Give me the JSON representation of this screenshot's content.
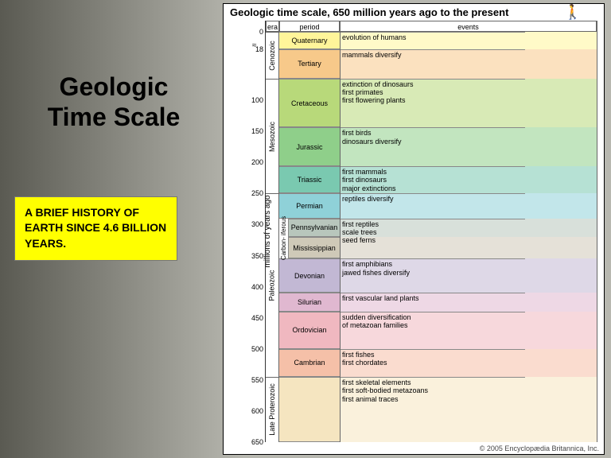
{
  "left": {
    "title_line1": "Geologic",
    "title_line2": "Time Scale",
    "subtitle": "A BRIEF HISTORY OF EARTH SINCE 4.6 BILLION YEARS.",
    "subtitle_bg": "#ffff00",
    "title_fontsize": 32
  },
  "chart": {
    "title": "Geologic time scale, 650 million years ago to the present",
    "title_fontsize": 13,
    "yaxis_label": "millions of years ago",
    "yaxis_fontsize": 10,
    "ylim": [
      0,
      650
    ],
    "yticks": [
      0,
      18,
      100,
      150,
      200,
      250,
      300,
      350,
      400,
      450,
      500,
      550,
      600,
      650
    ],
    "scale_break_at": 18,
    "col_headers": [
      "era",
      "period",
      "events"
    ],
    "col_x": {
      "era": 0,
      "period": 17,
      "events": 93
    },
    "col_w": {
      "era": 17,
      "period": 76,
      "events": 323
    },
    "eras": [
      {
        "label": "Cenozoic",
        "start": 0,
        "end": 65
      },
      {
        "label": "Mesozoic",
        "start": 65,
        "end": 250
      },
      {
        "label": "Paleozoic",
        "start": 250,
        "end": 545
      },
      {
        "label": "Late Proterozoic",
        "start": 545,
        "end": 650
      }
    ],
    "carboniferous_sub": {
      "label": "Carbon-\niferous",
      "start": 290,
      "end": 355
    },
    "periods": [
      {
        "label": "Quaternary",
        "start": 0,
        "end": 18,
        "color": "#fff59a"
      },
      {
        "label": "Tertiary",
        "start": 18,
        "end": 65,
        "color": "#f7c98a"
      },
      {
        "label": "Cretaceous",
        "start": 65,
        "end": 144,
        "color": "#b8d97a"
      },
      {
        "label": "Jurassic",
        "start": 144,
        "end": 206,
        "color": "#8fcf8a"
      },
      {
        "label": "Triassic",
        "start": 206,
        "end": 250,
        "color": "#7ac9b0"
      },
      {
        "label": "Permian",
        "start": 250,
        "end": 290,
        "color": "#8fd1d8"
      },
      {
        "label": "Pennsylvanian",
        "start": 290,
        "end": 320,
        "color": "#b8c6bc",
        "sub": true
      },
      {
        "label": "Mississippian",
        "start": 320,
        "end": 355,
        "color": "#cfc9b8",
        "sub": true
      },
      {
        "label": "Devonian",
        "start": 355,
        "end": 410,
        "color": "#c2b8d4"
      },
      {
        "label": "Silurian",
        "start": 410,
        "end": 440,
        "color": "#e0b8d0"
      },
      {
        "label": "Ordovician",
        "start": 440,
        "end": 500,
        "color": "#f0b8c0"
      },
      {
        "label": "Cambrian",
        "start": 500,
        "end": 545,
        "color": "#f5c0a8"
      },
      {
        "label": "",
        "start": 545,
        "end": 650,
        "color": "#f5e5c0"
      }
    ],
    "events": [
      {
        "at": 0,
        "text": "evolution of humans"
      },
      {
        "at": 18,
        "text": "mammals diversify"
      },
      {
        "at": 65,
        "text": "extinction of dinosaurs\nfirst primates\nfirst flowering plants"
      },
      {
        "at": 144,
        "text": "first birds\ndinosaurs diversify"
      },
      {
        "at": 206,
        "text": "first mammals\nfirst dinosaurs\nmajor extinctions"
      },
      {
        "at": 250,
        "text": "reptiles diversify"
      },
      {
        "at": 290,
        "text": "first reptiles\nscale trees\nseed ferns"
      },
      {
        "at": 355,
        "text": "first amphibians\njawed fishes diversify"
      },
      {
        "at": 410,
        "text": "first vascular land plants"
      },
      {
        "at": 440,
        "text": "sudden diversification\n of metazoan families"
      },
      {
        "at": 500,
        "text": "first fishes\nfirst chordates"
      },
      {
        "at": 545,
        "text": "first skeletal elements\nfirst soft-bodied metazoans\nfirst animal traces"
      }
    ],
    "copyright": "© 2005 Encyclopædia Britannica, Inc.",
    "background_color": "#ffffff",
    "border_color": "#666666",
    "label_fontsize": 9
  }
}
